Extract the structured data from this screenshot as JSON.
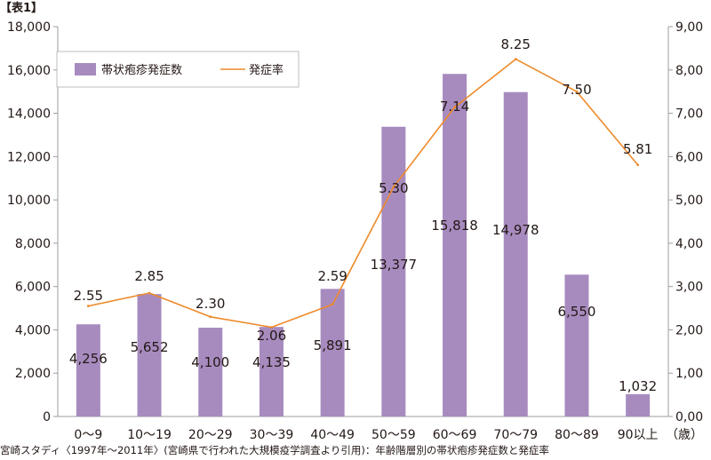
{
  "table_label": "【表1】",
  "footer": "宮崎スタディ〈1997年〜2011年〉(宮崎県で行われた大規模疫学調査より引用)：年齢階層別の帯状疱疹発症数と発症率",
  "colors": {
    "bar": "#a78bbf",
    "line": "#ee8a2a",
    "axis": "#9e9e9e",
    "text": "#231815"
  },
  "chart_data": {
    "type": "bar+line",
    "categories": [
      "0〜9",
      "10〜19",
      "20〜29",
      "30〜39",
      "40〜49",
      "50〜59",
      "60〜69",
      "70〜79",
      "80〜89",
      "90以上"
    ],
    "category_suffix": "（歳）",
    "series": [
      {
        "name": "帯状疱疹発症数",
        "type": "bar",
        "axis": "left",
        "values": [
          4256,
          5652,
          4100,
          4135,
          5891,
          13377,
          15818,
          14978,
          6550,
          1032
        ],
        "labels": [
          "4,256",
          "5,652",
          "4,100",
          "4,135",
          "5,891",
          "13,377",
          "15,818",
          "14,978",
          "6,550",
          "1,032"
        ]
      },
      {
        "name": "発症率",
        "type": "line",
        "axis": "right",
        "values": [
          2.55,
          2.85,
          2.3,
          2.06,
          2.59,
          5.3,
          7.14,
          8.25,
          7.5,
          5.81
        ],
        "labels": [
          "2.55",
          "2.85",
          "2.30",
          "2.06",
          "2.59",
          "5.30",
          "7.14",
          "8.25",
          "7.50",
          "5.81"
        ]
      }
    ],
    "y_left": {
      "ylim": [
        0,
        18000
      ],
      "ticks": [
        "0",
        "2,000",
        "4,000",
        "6,000",
        "8,000",
        "10,000",
        "12,000",
        "14,000",
        "16,000",
        "18,000"
      ]
    },
    "y_right": {
      "ylim": [
        0,
        9
      ],
      "ticks": [
        "0,00",
        "1,00",
        "2,00",
        "3,00",
        "4,00",
        "5,00",
        "6,00",
        "7,00",
        "8,00",
        "9,00"
      ]
    },
    "grid": false,
    "legend": "top-left"
  }
}
